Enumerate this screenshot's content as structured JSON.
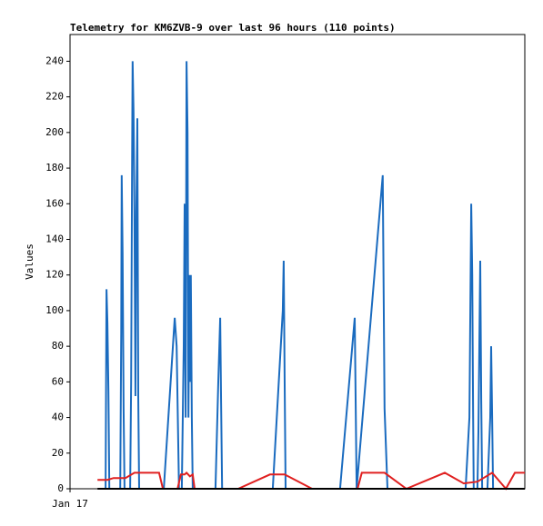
{
  "chart_data": {
    "type": "line",
    "title": "Telemetry for KM6ZVB-9 over last 96 hours (110 points)",
    "y_label": "Values",
    "xlim": [
      0,
      96
    ],
    "xticks": [
      {
        "value": 0,
        "label": "Jan 17"
      }
    ],
    "ylim": [
      0,
      255
    ],
    "yticks": [
      0,
      20,
      40,
      60,
      80,
      100,
      120,
      140,
      160,
      180,
      200,
      220,
      240
    ],
    "series": [
      {
        "color": "#1a6bbf",
        "x": [
          7.5,
          7.7,
          7.9,
          8.1,
          8.3,
          10.6,
          10.8,
          10.9,
          11.1,
          11.3,
          11.5,
          12.7,
          12.9,
          13.1,
          13.2,
          13.4,
          13.6,
          13.8,
          14.0,
          14.2,
          14.4,
          14.6,
          19.8,
          22.1,
          22.5,
          23.0,
          23.6,
          24.0,
          24.2,
          24.4,
          24.6,
          24.8,
          25.0,
          25.2,
          25.3,
          25.5,
          25.7,
          25.9,
          30.7,
          31.3,
          31.7,
          31.9,
          32.1,
          42.8,
          44.9,
          45.1,
          45.3,
          45.5,
          57.0,
          60.1,
          60.5,
          66.0,
          66.4,
          67.0,
          83.5,
          84.3,
          84.7,
          84.9,
          85.1,
          85.2,
          86.0,
          86.2,
          86.6,
          86.8,
          87.0,
          88.1,
          88.7,
          88.9,
          89.1,
          89.3
        ],
        "values": [
          0,
          112,
          93,
          55,
          0,
          0,
          88,
          176,
          132,
          45,
          0,
          0,
          60,
          180,
          240,
          212,
          156,
          52,
          156,
          208,
          52,
          0,
          0,
          96,
          80,
          0,
          0,
          80,
          160,
          40,
          240,
          200,
          40,
          120,
          60,
          120,
          40,
          0,
          0,
          60,
          96,
          48,
          0,
          0,
          100,
          128,
          64,
          0,
          0,
          96,
          0,
          176,
          45,
          0,
          0,
          40,
          160,
          120,
          40,
          0,
          0,
          32,
          128,
          50,
          0,
          0,
          40,
          80,
          40,
          0
        ]
      },
      {
        "color": "#e02020",
        "x": [
          5.8,
          7.9,
          9.2,
          10.2,
          11.7,
          13.6,
          18.8,
          19.6,
          22.7,
          23.4,
          24.2,
          24.6,
          25.3,
          25.9,
          26.3,
          35.5,
          42.2,
          45.3,
          51.1,
          60.7,
          61.6,
          66.4,
          71.0,
          79.1,
          83.1,
          86.0,
          89.1,
          92.0,
          93.9,
          96
        ],
        "values": [
          5,
          5,
          6,
          6,
          6,
          9,
          9,
          0,
          0,
          8,
          8,
          9,
          7,
          8,
          0,
          0,
          8,
          8,
          0,
          0,
          9,
          9,
          0,
          9,
          3,
          4,
          9,
          0,
          9,
          9
        ]
      },
      {
        "color": "#000000",
        "x": [
          5.8,
          96
        ],
        "values": [
          0,
          0
        ]
      }
    ]
  }
}
